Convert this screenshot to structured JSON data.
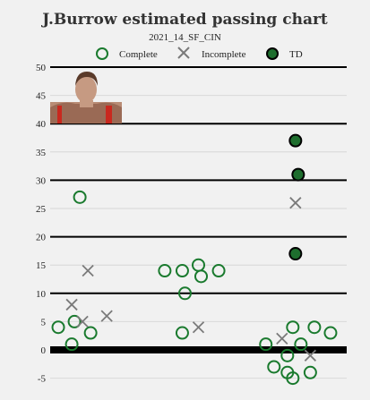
{
  "chart_data": {
    "type": "scatter",
    "title": "J.Burrow estimated passing chart",
    "subtitle": "2021_14_SF_CIN",
    "ylim": [
      -7,
      51
    ],
    "yticks": [
      -5,
      0,
      5,
      10,
      15,
      20,
      25,
      30,
      35,
      40,
      45,
      50
    ],
    "legend_position": "top",
    "grid": true,
    "colors": {
      "complete": "#1a7a2e",
      "incomplete": "#7a7a7a",
      "td_fill": "#1e6e2e",
      "background": "#f1f1f1"
    },
    "series": [
      {
        "name": "Complete",
        "marker": "open-circle",
        "points": [
          [
            0.22,
            27
          ],
          [
            0.18,
            5
          ],
          [
            0.06,
            4
          ],
          [
            0.3,
            3
          ],
          [
            0.16,
            1
          ],
          [
            0.85,
            14
          ],
          [
            0.98,
            14
          ],
          [
            1.1,
            15
          ],
          [
            1.12,
            13
          ],
          [
            1.25,
            14
          ],
          [
            1.0,
            10
          ],
          [
            0.98,
            3
          ],
          [
            1.8,
            4
          ],
          [
            1.96,
            4
          ],
          [
            2.08,
            3
          ],
          [
            1.6,
            1
          ],
          [
            1.86,
            1
          ],
          [
            1.76,
            -1
          ],
          [
            1.66,
            -3
          ],
          [
            1.76,
            -4
          ],
          [
            1.93,
            -4
          ],
          [
            1.8,
            -5
          ]
        ]
      },
      {
        "name": "Incomplete",
        "marker": "x",
        "points": [
          [
            0.28,
            14
          ],
          [
            0.16,
            8
          ],
          [
            0.42,
            6
          ],
          [
            0.24,
            5
          ],
          [
            1.1,
            4
          ],
          [
            1.82,
            26
          ],
          [
            1.72,
            2
          ],
          [
            1.93,
            -1
          ]
        ]
      },
      {
        "name": "TD",
        "marker": "filled-circle",
        "points": [
          [
            1.82,
            37
          ],
          [
            1.84,
            31
          ],
          [
            1.82,
            17
          ]
        ]
      }
    ]
  }
}
